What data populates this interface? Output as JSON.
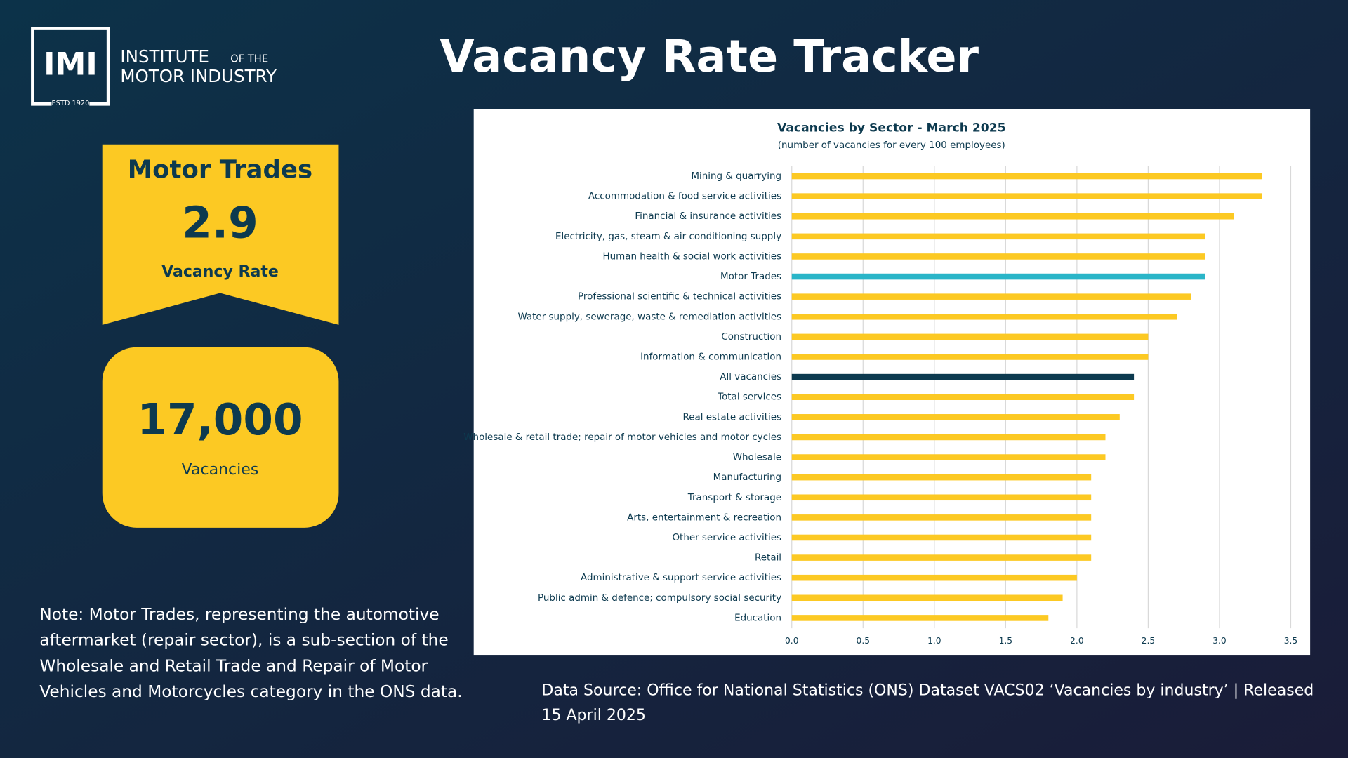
{
  "header": {
    "logo_mark": "IMI",
    "logo_line1": "INSTITUTE",
    "logo_small": "OF THE",
    "logo_line2": "MOTOR INDUSTRY",
    "logo_est": "ESTD 1920",
    "title": "Vacancy Rate Tracker"
  },
  "rate_card": {
    "label": "Motor Trades",
    "value": "2.9",
    "caption": "Vacancy Rate"
  },
  "count_card": {
    "value": "17,000",
    "caption": "Vacancies"
  },
  "note": "Note: Motor Trades, representing the automotive aftermarket (repair sector), is a sub-section of the Wholesale and Retail Trade and Repair of Motor Vehicles and Motorcycles category in the ONS data.",
  "source": "Data Source: Office for National Statistics (ONS) Dataset VACS02 ‘Vacancies by industry’ | Released 15 April 2025",
  "chart_data": {
    "type": "barh",
    "title": "Vacancies by Sector  - March 2025",
    "subtitle": "(number of vacancies for every 100 employees)",
    "categories": [
      "Mining & quarrying",
      "Accommodation & food service activities",
      "Financial & insurance activities",
      "Electricity, gas, steam & air conditioning supply",
      "Human health & social work activities",
      "Motor Trades",
      "Professional scientific & technical activities",
      "Water supply, sewerage, waste & remediation activities",
      "Construction",
      "Information & communication",
      "All vacancies",
      "Total services",
      "Real estate activities",
      "Wholesale & retail trade; repair of motor vehicles and motor cycles",
      "Wholesale",
      "Manufacturing",
      "Transport & storage",
      "Arts, entertainment & recreation",
      "Other service activities",
      "Retail",
      "Administrative & support service activities",
      "Public admin & defence; compulsory social security",
      "Education"
    ],
    "values": [
      3.3,
      3.3,
      3.1,
      2.9,
      2.9,
      2.9,
      2.8,
      2.7,
      2.5,
      2.5,
      2.4,
      2.4,
      2.3,
      2.2,
      2.2,
      2.1,
      2.1,
      2.1,
      2.1,
      2.1,
      2.0,
      1.9,
      1.8
    ],
    "colors": [
      "#fcc923",
      "#fcc923",
      "#fcc923",
      "#fcc923",
      "#fcc923",
      "#2ab5c8",
      "#fcc923",
      "#fcc923",
      "#fcc923",
      "#fcc923",
      "#0d3a4f",
      "#fcc923",
      "#fcc923",
      "#fcc923",
      "#fcc923",
      "#fcc923",
      "#fcc923",
      "#fcc923",
      "#fcc923",
      "#fcc923",
      "#fcc923",
      "#fcc923",
      "#fcc923"
    ],
    "xlim": [
      0,
      3.6
    ],
    "xticks": [
      {
        "value": 0,
        "label": "0.0"
      },
      0.5,
      {
        "value": 1,
        "label": "1.0"
      },
      1.5,
      {
        "value": 2,
        "label": "2.0"
      },
      2.5,
      {
        "value": 3,
        "label": "3.0"
      },
      3.5
    ],
    "grid": true
  }
}
